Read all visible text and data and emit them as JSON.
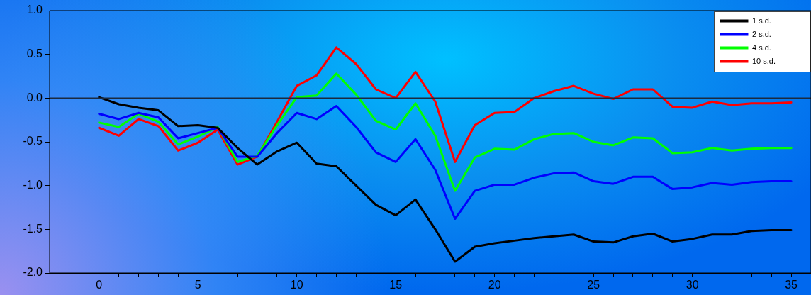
{
  "chart_data": {
    "type": "line",
    "x": [
      0,
      1,
      2,
      3,
      4,
      5,
      6,
      7,
      8,
      9,
      10,
      11,
      12,
      13,
      14,
      15,
      16,
      17,
      18,
      19,
      20,
      21,
      22,
      23,
      24,
      25,
      26,
      27,
      28,
      29,
      30,
      31,
      32,
      33,
      34,
      35
    ],
    "series": [
      {
        "name": "1 s.d.",
        "color": "#000000",
        "values": [
          0.01,
          -0.07,
          -0.11,
          -0.14,
          -0.32,
          -0.31,
          -0.34,
          -0.57,
          -0.76,
          -0.61,
          -0.51,
          -0.75,
          -0.78,
          -1.0,
          -1.22,
          -1.34,
          -1.16,
          -1.5,
          -1.87,
          -1.7,
          -1.66,
          -1.63,
          -1.6,
          -1.58,
          -1.56,
          -1.64,
          -1.65,
          -1.58,
          -1.55,
          -1.64,
          -1.61,
          -1.56,
          -1.56,
          -1.52,
          -1.51,
          -1.51
        ]
      },
      {
        "name": "2 s.d.",
        "color": "#0000ff",
        "values": [
          -0.18,
          -0.24,
          -0.17,
          -0.22,
          -0.46,
          -0.4,
          -0.34,
          -0.67,
          -0.67,
          -0.4,
          -0.17,
          -0.24,
          -0.09,
          -0.33,
          -0.62,
          -0.73,
          -0.47,
          -0.82,
          -1.38,
          -1.06,
          -0.99,
          -0.99,
          -0.91,
          -0.86,
          -0.85,
          -0.95,
          -0.98,
          -0.9,
          -0.9,
          -1.04,
          -1.02,
          -0.97,
          -0.99,
          -0.96,
          -0.95,
          -0.95
        ]
      },
      {
        "name": "4 s.d.",
        "color": "#00ff00",
        "values": [
          -0.28,
          -0.33,
          -0.18,
          -0.27,
          -0.53,
          -0.44,
          -0.33,
          -0.73,
          -0.66,
          -0.31,
          0.01,
          0.03,
          0.28,
          0.04,
          -0.26,
          -0.36,
          -0.06,
          -0.43,
          -1.06,
          -0.68,
          -0.58,
          -0.59,
          -0.47,
          -0.41,
          -0.4,
          -0.5,
          -0.54,
          -0.45,
          -0.46,
          -0.63,
          -0.62,
          -0.57,
          -0.6,
          -0.58,
          -0.57,
          -0.57
        ]
      },
      {
        "name": "10 s.d.",
        "color": "#ff0000",
        "values": [
          -0.34,
          -0.43,
          -0.24,
          -0.32,
          -0.6,
          -0.51,
          -0.36,
          -0.76,
          -0.67,
          -0.27,
          0.14,
          0.26,
          0.58,
          0.39,
          0.1,
          0.0,
          0.3,
          -0.04,
          -0.73,
          -0.31,
          -0.17,
          -0.16,
          0.0,
          0.08,
          0.14,
          0.05,
          -0.01,
          0.1,
          0.1,
          -0.1,
          -0.11,
          -0.04,
          -0.08,
          -0.06,
          -0.06,
          -0.05
        ]
      }
    ],
    "xlim": [
      -2.5,
      36
    ],
    "xticks": [
      0,
      {
        "value": 1,
        "label": null
      },
      {
        "value": 2,
        "label": null
      },
      {
        "value": 3,
        "label": null
      },
      {
        "value": 4,
        "label": null
      },
      5,
      {
        "value": 6,
        "label": null
      },
      {
        "value": 7,
        "label": null
      },
      {
        "value": 8,
        "label": null
      },
      {
        "value": 9,
        "label": null
      },
      10,
      {
        "value": 11,
        "label": null
      },
      {
        "value": 12,
        "label": null
      },
      {
        "value": 13,
        "label": null
      },
      {
        "value": 14,
        "label": null
      },
      15,
      {
        "value": 16,
        "label": null
      },
      {
        "value": 17,
        "label": null
      },
      {
        "value": 18,
        "label": null
      },
      {
        "value": 19,
        "label": null
      },
      20,
      {
        "value": 21,
        "label": null
      },
      {
        "value": 22,
        "label": null
      },
      {
        "value": 23,
        "label": null
      },
      {
        "value": 24,
        "label": null
      },
      25,
      {
        "value": 26,
        "label": null
      },
      {
        "value": 27,
        "label": null
      },
      {
        "value": 28,
        "label": null
      },
      {
        "value": 29,
        "label": null
      },
      30,
      {
        "value": 31,
        "label": null
      },
      {
        "value": 32,
        "label": null
      },
      {
        "value": 33,
        "label": null
      },
      {
        "value": 34,
        "label": null
      },
      35
    ],
    "ylim": [
      -2.0,
      1.0
    ],
    "yticks": [
      {
        "value": -2.0,
        "label": "-2.0"
      },
      {
        "value": -1.5,
        "label": "-1.5"
      },
      {
        "value": -1.0,
        "label": "-1.0"
      },
      {
        "value": -0.5,
        "label": "-0.5"
      },
      {
        "value": 0,
        "label": "0.0"
      },
      {
        "value": 0.5,
        "label": "0.5"
      },
      {
        "value": 1.0,
        "label": "1.0"
      }
    ],
    "ref_lines": [
      {
        "axis": "y",
        "value": 0,
        "color": "#1a2a40"
      }
    ],
    "legend": "top right",
    "marker": "none",
    "line_style": "solid"
  }
}
